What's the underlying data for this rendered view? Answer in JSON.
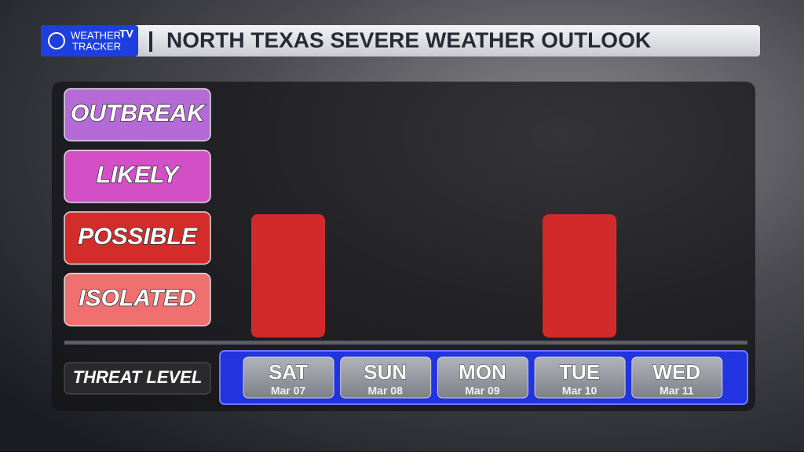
{
  "logo": {
    "word1": "WEATHER",
    "word2": "TV",
    "word3": "TRACKER"
  },
  "chart_data": {
    "type": "bar",
    "title": "NORTH TEXAS SEVERE WEATHER OUTLOOK",
    "x_label": "THREAT LEVEL",
    "categories": [
      "SAT",
      "SUN",
      "MON",
      "TUE",
      "WED"
    ],
    "dates": [
      "Mar 07",
      "Mar 08",
      "Mar 09",
      "Mar 10",
      "Mar 11"
    ],
    "values": [
      2,
      0,
      0,
      2,
      0
    ],
    "color": "#d22a2a",
    "ylim": [
      0,
      4
    ],
    "yticks": [
      {
        "value": 1,
        "label": "ISOLATED"
      },
      {
        "value": 2,
        "label": "POSSIBLE"
      },
      {
        "value": 3,
        "label": "LIKELY"
      },
      {
        "value": 4,
        "label": "OUTBREAK"
      }
    ],
    "ytick_colors": [
      "#f07070",
      "#d42b2b",
      "#d24fc6",
      "#b66ad8"
    ]
  }
}
